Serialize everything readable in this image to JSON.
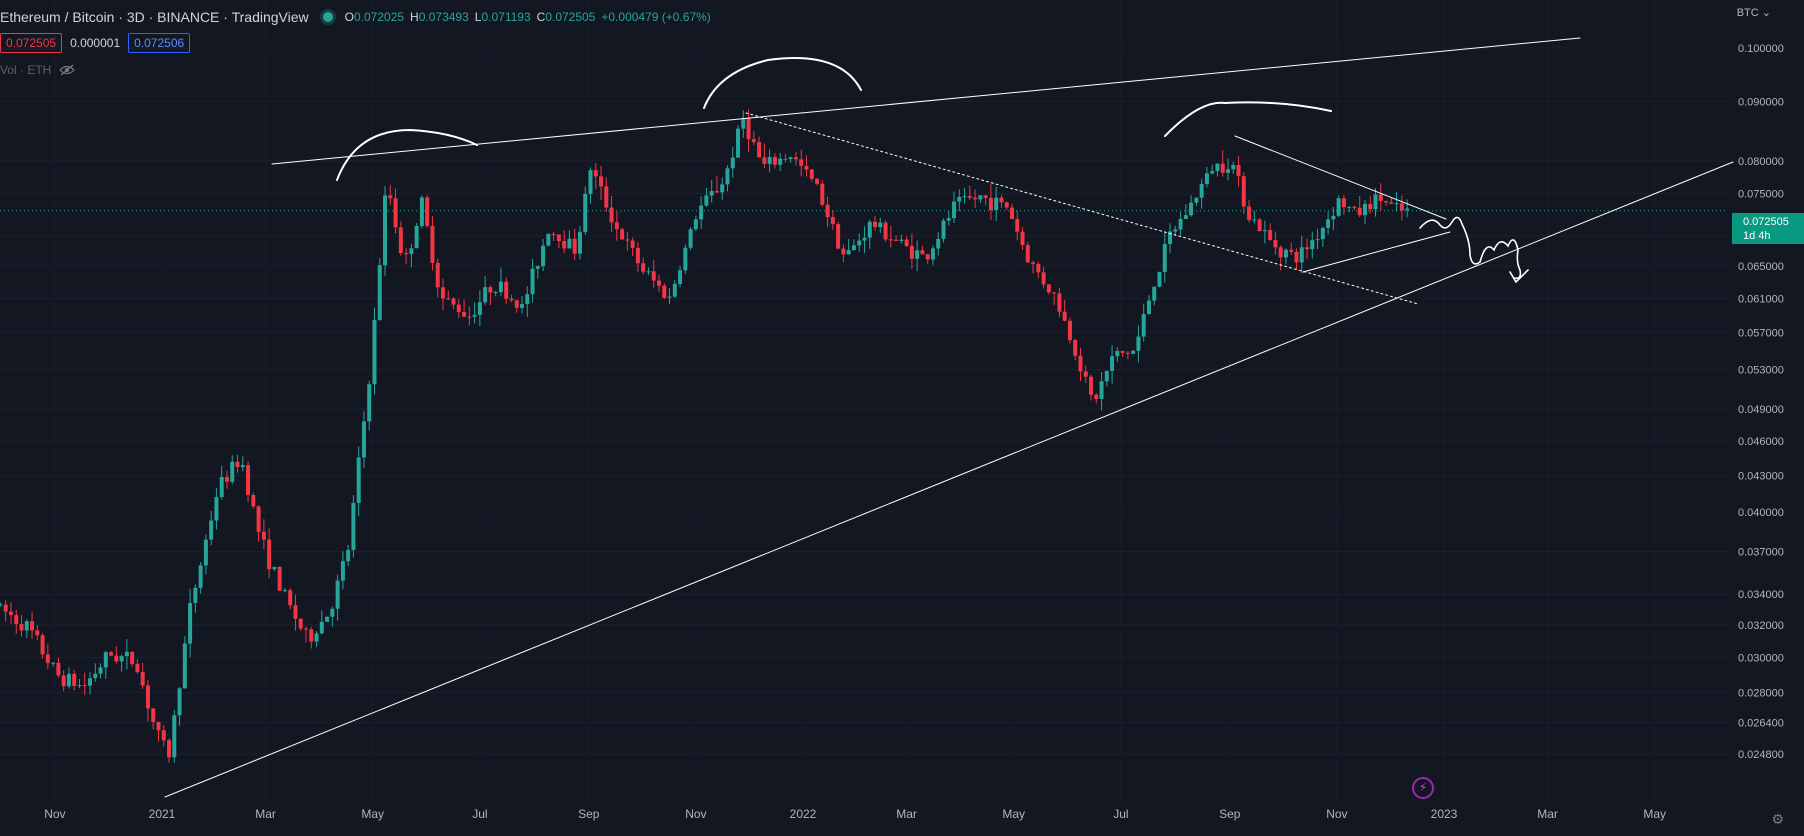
{
  "header": {
    "title": "Ethereum / Bitcoin · 3D · BINANCE · TradingView",
    "ohlc": [
      {
        "key": "O",
        "value": "0.072025"
      },
      {
        "key": "H",
        "value": "0.073493"
      },
      {
        "key": "L",
        "value": "0.071193"
      },
      {
        "key": "C",
        "value": "0.072505"
      }
    ],
    "change": "+0.000479 (+0.67%)"
  },
  "badges": {
    "bid": "0.072505",
    "spread": "0.000001",
    "ask": "0.072506"
  },
  "volume_label": "Vol · ETH",
  "axis_currency": "BTC",
  "last_price": {
    "value": "0.072505",
    "countdown": "1d 4h"
  },
  "colors": {
    "background": "#131722",
    "up": "#26a69a",
    "down": "#f23645",
    "drawing": "#ffffff",
    "price_tag": "#089981"
  },
  "icons": [
    "eye-off-icon",
    "gear-icon",
    "lightning-icon",
    "chevron-down-icon"
  ],
  "chart_data": {
    "type": "candlestick",
    "scale": "log",
    "x_ticks": [
      "Nov",
      "2021",
      "Mar",
      "May",
      "Jul",
      "Sep",
      "Nov",
      "2022",
      "Mar",
      "May",
      "Jul",
      "Sep",
      "Nov",
      "2023",
      "Mar",
      "May"
    ],
    "y_ticks": [
      "0.100000",
      "0.090000",
      "0.080000",
      "0.075000",
      "0.069000",
      "0.065000",
      "0.061000",
      "0.057000",
      "0.053000",
      "0.049000",
      "0.046000",
      "0.043000",
      "0.040000",
      "0.037000",
      "0.034000",
      "0.032000",
      "0.030000",
      "0.028000",
      "0.026400",
      "0.024800"
    ],
    "path": [
      [
        "2020-10-01",
        0.0333
      ],
      [
        "2020-10-20",
        0.0318
      ],
      [
        "2020-11-05",
        0.029
      ],
      [
        "2020-11-20",
        0.0283
      ],
      [
        "2020-12-05",
        0.0302
      ],
      [
        "2020-12-20",
        0.0298
      ],
      [
        "2021-01-01",
        0.0258
      ],
      [
        "2021-01-08",
        0.0248
      ],
      [
        "2021-01-20",
        0.033
      ],
      [
        "2021-02-05",
        0.042
      ],
      [
        "2021-02-18",
        0.0445
      ],
      [
        "2021-03-01",
        0.038
      ],
      [
        "2021-03-12",
        0.0345
      ],
      [
        "2021-03-28",
        0.031
      ],
      [
        "2021-04-10",
        0.033
      ],
      [
        "2021-04-20",
        0.0372
      ],
      [
        "2021-05-03",
        0.0535
      ],
      [
        "2021-05-12",
        0.077
      ],
      [
        "2021-05-22",
        0.065
      ],
      [
        "2021-06-01",
        0.0735
      ],
      [
        "2021-06-12",
        0.061
      ],
      [
        "2021-06-28",
        0.059
      ],
      [
        "2021-07-12",
        0.063
      ],
      [
        "2021-07-28",
        0.0598
      ],
      [
        "2021-08-12",
        0.07
      ],
      [
        "2021-08-28",
        0.0672
      ],
      [
        "2021-09-05",
        0.079
      ],
      [
        "2021-09-20",
        0.07
      ],
      [
        "2021-10-05",
        0.0645
      ],
      [
        "2021-10-20",
        0.061
      ],
      [
        "2021-11-05",
        0.0725
      ],
      [
        "2021-11-20",
        0.077
      ],
      [
        "2021-12-01",
        0.087
      ],
      [
        "2021-12-12",
        0.079
      ],
      [
        "2021-12-28",
        0.081
      ],
      [
        "2022-01-12",
        0.076
      ],
      [
        "2022-01-28",
        0.066
      ],
      [
        "2022-02-12",
        0.0708
      ],
      [
        "2022-02-28",
        0.068
      ],
      [
        "2022-03-15",
        0.066
      ],
      [
        "2022-04-01",
        0.0735
      ],
      [
        "2022-04-15",
        0.0745
      ],
      [
        "2022-05-01",
        0.073
      ],
      [
        "2022-05-12",
        0.066
      ],
      [
        "2022-05-28",
        0.061
      ],
      [
        "2022-06-12",
        0.053
      ],
      [
        "2022-06-18",
        0.0495
      ],
      [
        "2022-06-30",
        0.0545
      ],
      [
        "2022-07-12",
        0.055
      ],
      [
        "2022-07-20",
        0.061
      ],
      [
        "2022-08-01",
        0.069
      ],
      [
        "2022-08-12",
        0.073
      ],
      [
        "2022-08-25",
        0.079
      ],
      [
        "2022-09-05",
        0.08
      ],
      [
        "2022-09-15",
        0.072
      ],
      [
        "2022-09-28",
        0.068
      ],
      [
        "2022-10-12",
        0.066
      ],
      [
        "2022-10-25",
        0.0695
      ],
      [
        "2022-11-05",
        0.074
      ],
      [
        "2022-11-15",
        0.072
      ],
      [
        "2022-11-28",
        0.0745
      ],
      [
        "2022-12-08",
        0.0725
      ],
      [
        "2022-12-12",
        0.072505
      ]
    ]
  }
}
